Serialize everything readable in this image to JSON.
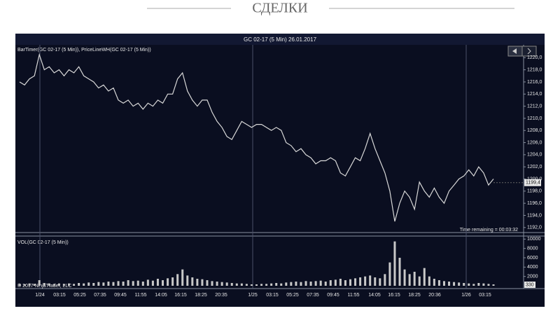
{
  "page": {
    "title": "СДЕЛКИ"
  },
  "chart_data": [
    {
      "type": "line",
      "title": "GC 02-17 (5 Min)  26.01.2017",
      "indicators": "BarTimer(GC 02-17 (5 Min)), PriceLineWH(GC 02-17 (5 Min))",
      "time_remaining": "Time remaining = 00:03:32",
      "color": "#d8d8d8",
      "values": [
        1216,
        1215.5,
        1216.5,
        1217,
        1220.5,
        1218,
        1218.5,
        1217.5,
        1218,
        1217,
        1218,
        1217.5,
        1218.5,
        1217,
        1216.5,
        1216,
        1215,
        1215.5,
        1214.5,
        1215,
        1213,
        1212.5,
        1213,
        1212,
        1212.5,
        1211.5,
        1212.5,
        1212,
        1213,
        1212.5,
        1214,
        1214,
        1216.5,
        1217.5,
        1214.5,
        1213,
        1212,
        1213,
        1213,
        1211,
        1209.5,
        1208.5,
        1207,
        1206.5,
        1208,
        1209.5,
        1209,
        1208.5,
        1209,
        1209,
        1208.5,
        1208,
        1208.5,
        1208,
        1206,
        1205.5,
        1204.5,
        1205,
        1204,
        1203.5,
        1202.5,
        1203,
        1203,
        1203.5,
        1203,
        1201,
        1200.5,
        1202,
        1203.5,
        1203,
        1205,
        1207.5,
        1205,
        1203,
        1201,
        1198,
        1193,
        1196,
        1198,
        1197,
        1195,
        1199.5,
        1198,
        1197,
        1198.5,
        1197,
        1196,
        1198,
        1199,
        1200,
        1200.5,
        1201.5,
        1200.5,
        1202,
        1201,
        1199,
        1200
      ],
      "last": {
        "value": 1199.4,
        "label": "1199,4"
      },
      "ylim": [
        1191.4,
        1222
      ],
      "yticks": [
        {
          "value": 1192,
          "label": "1192,0"
        },
        {
          "value": 1194,
          "label": "1194,0"
        },
        {
          "value": 1196,
          "label": "1196,0"
        },
        {
          "value": 1198,
          "label": "1198,0"
        },
        {
          "value": 1200,
          "label": "1200,0"
        },
        {
          "value": 1202,
          "label": "1202,0"
        },
        {
          "value": 1204,
          "label": "1204,0"
        },
        {
          "value": 1206,
          "label": "1206,0"
        },
        {
          "value": 1208,
          "label": "1208,0"
        },
        {
          "value": 1210,
          "label": "1210,0"
        },
        {
          "value": 1212,
          "label": "1212,0"
        },
        {
          "value": 1214,
          "label": "1214,0"
        },
        {
          "value": 1216,
          "label": "1216,0"
        },
        {
          "value": 1218,
          "label": "1218,0"
        },
        {
          "value": 1220,
          "label": "1220,0"
        }
      ]
    },
    {
      "type": "bar",
      "title": "VOL(GC 02-17 (5 Min))",
      "copyright": "© 2017 NinjaTrader, LLC",
      "color": "#c8c8c8",
      "values": [
        400,
        300,
        500,
        400,
        1200,
        600,
        500,
        400,
        500,
        400,
        500,
        400,
        600,
        500,
        700,
        600,
        800,
        700,
        900,
        800,
        1000,
        900,
        1200,
        1000,
        1100,
        900,
        1300,
        1100,
        1500,
        1200,
        1600,
        1800,
        2500,
        3500,
        2200,
        1800,
        1500,
        1400,
        1200,
        1000,
        900,
        800,
        700,
        600,
        500,
        500,
        400,
        300,
        300,
        400,
        400,
        500,
        600,
        500,
        700,
        800,
        900,
        800,
        1000,
        900,
        1000,
        1100,
        900,
        1200,
        1300,
        1500,
        1200,
        1400,
        1600,
        1800,
        2000,
        2200,
        1800,
        1600,
        2500,
        5000,
        9500,
        6000,
        3500,
        2500,
        3000,
        2000,
        3800,
        2000,
        1500,
        1200,
        1000,
        900,
        800,
        700,
        600,
        500,
        400,
        600,
        500,
        400,
        300
      ],
      "last": 330,
      "ylim": [
        0,
        10500
      ],
      "yticks": [
        2000,
        4000,
        6000,
        8000,
        10000
      ],
      "x_labels": [
        "1/24",
        "03:15",
        "05:25",
        "07:35",
        "09:45",
        "11:55",
        "14:05",
        "16:15",
        "18:25",
        "20:35",
        "1/25",
        "03:15",
        "05:25",
        "07:35",
        "09:45",
        "11:55",
        "14:05",
        "16:15",
        "18:25",
        "20:36",
        "1/26",
        "03:15"
      ]
    }
  ]
}
